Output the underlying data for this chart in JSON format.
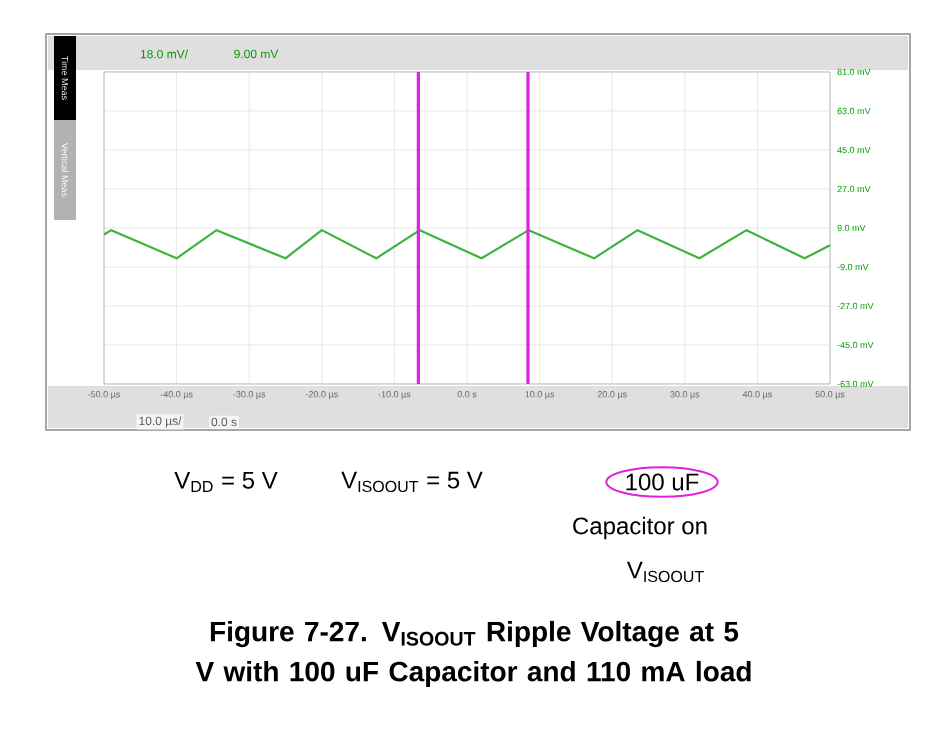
{
  "chart_data": {
    "type": "line",
    "title": "Figure 7-27. V$_{ISOOUT}$ Ripple Voltage at 5 V with 100 uF Capacitor and 110 mA load",
    "x": [
      -50,
      -49,
      -40,
      -34.5,
      -25,
      -20,
      -12.5,
      -6.5,
      2,
      8.5,
      17.5,
      23.5,
      32,
      38.5,
      46.5,
      50
    ],
    "series": [
      {
        "color": "#3cb43c",
        "values": [
          6,
          8,
          -5,
          8,
          -5,
          8,
          -5,
          8,
          -5,
          8,
          -5,
          8,
          -5,
          8,
          -5,
          1
        ]
      }
    ],
    "xlim": [
      -50,
      50
    ],
    "xticks": [
      {
        "value": -50,
        "label": "-50.0 µs"
      },
      {
        "value": -40,
        "label": "-40.0 µs"
      },
      {
        "value": -30,
        "label": "-30.0 µs"
      },
      {
        "value": -20,
        "label": "-20.0 µs"
      },
      {
        "value": -10,
        "label": "-10.0 µs"
      },
      {
        "value": 0,
        "label": "0.0 s"
      },
      {
        "value": 10,
        "label": "10.0 µs"
      },
      {
        "value": 20,
        "label": "20.0 µs"
      },
      {
        "value": 30,
        "label": "30.0 µs"
      },
      {
        "value": 40,
        "label": "40.0 µs"
      },
      {
        "value": 50,
        "label": "50.0 µs"
      }
    ],
    "ylim": [
      -63,
      81
    ],
    "yticks": [
      {
        "value": 81,
        "label": "81.0 mV"
      },
      {
        "value": 63,
        "label": "63.0 mV"
      },
      {
        "value": 45,
        "label": "45.0 mV"
      },
      {
        "value": 27,
        "label": "27.0 mV"
      },
      {
        "value": 9,
        "label": "9.0 mV"
      },
      {
        "value": -9,
        "label": "-9.0 mV"
      },
      {
        "value": -27,
        "label": "-27.0 mV"
      },
      {
        "value": -45,
        "label": "-45.0 mV"
      },
      {
        "value": -63,
        "label": "-63.0 mV"
      }
    ],
    "grid": true,
    "ref_lines": [
      {
        "axis": "x",
        "value": -6.7,
        "color": "#e020e0"
      },
      {
        "axis": "x",
        "value": 8.4,
        "color": "#e020e0"
      }
    ],
    "annotations": [
      "18.0 mV/",
      "9.00 mV",
      "10.0 µs/",
      "0.0 s",
      "Time Meas",
      "Vertical Meas",
      "V$_{DD}$ = 5 V",
      "V$_{ISOOUT}$ = 5 V",
      "100 uF",
      "Capacitor on",
      "V$_{ISOOUT}$"
    ]
  }
}
